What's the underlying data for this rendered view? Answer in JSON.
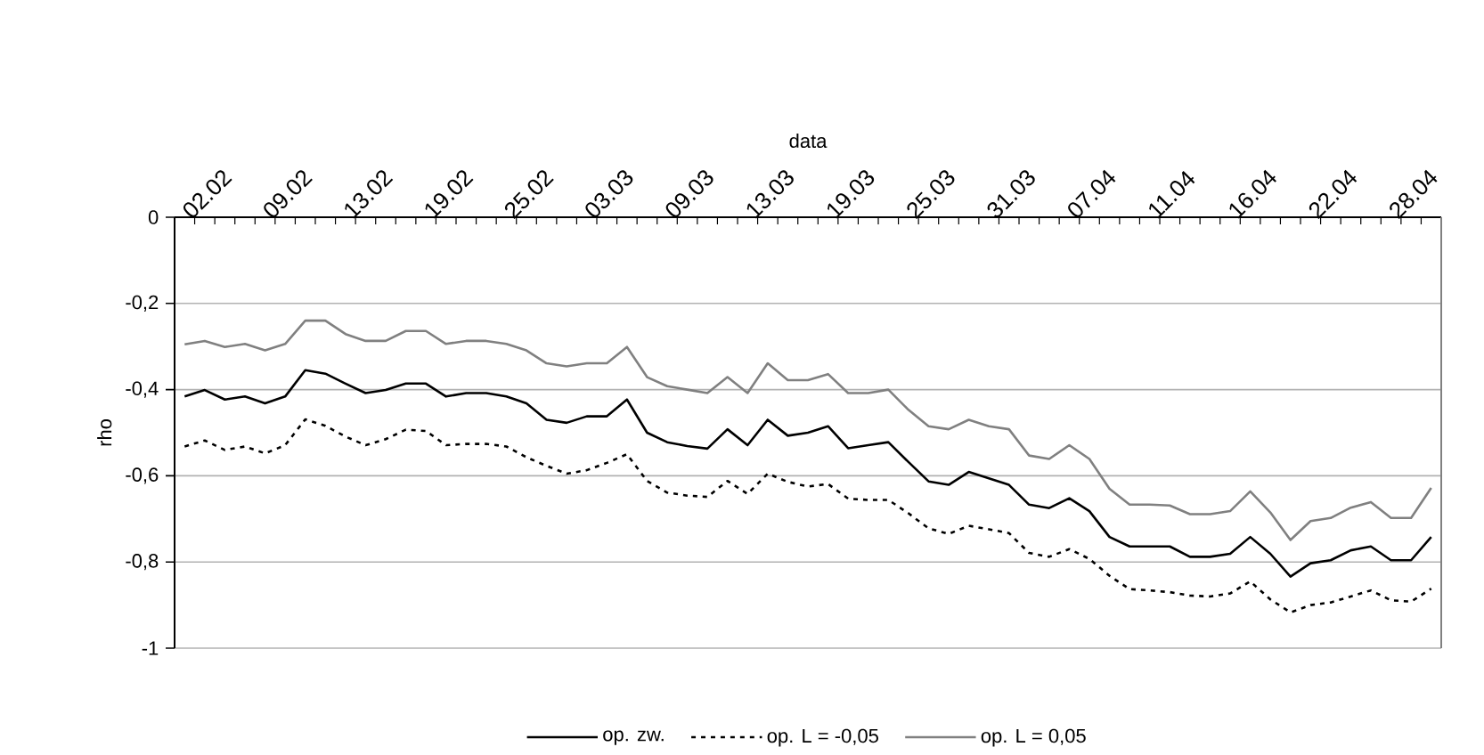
{
  "chart_data": {
    "type": "line",
    "xlabel": "data",
    "ylabel": "rho",
    "categories": [
      null,
      "02.02",
      null,
      null,
      null,
      "09.02",
      null,
      null,
      null,
      "13.02",
      null,
      null,
      null,
      "19.02",
      null,
      null,
      null,
      "25.02",
      null,
      null,
      null,
      "03.03",
      null,
      null,
      null,
      "09.03",
      null,
      null,
      null,
      "13.03",
      null,
      null,
      null,
      "19.03",
      null,
      null,
      null,
      "25.03",
      null,
      null,
      null,
      "31.03",
      null,
      null,
      null,
      "07.04",
      null,
      null,
      null,
      "11.04",
      null,
      null,
      null,
      "16.04",
      null,
      null,
      null,
      "22.04",
      null,
      null,
      null,
      "28.04",
      null
    ],
    "series": [
      {
        "name": "op. zw.",
        "color": "#000000",
        "line_style": "solid",
        "values": [
          -0.416,
          -0.401,
          -0.423,
          -0.416,
          -0.432,
          -0.416,
          -0.355,
          -0.363,
          -0.386,
          -0.408,
          -0.401,
          -0.386,
          -0.386,
          -0.416,
          -0.408,
          -0.408,
          -0.416,
          -0.432,
          -0.47,
          -0.477,
          -0.462,
          -0.462,
          -0.423,
          -0.5,
          -0.522,
          -0.531,
          -0.537,
          -0.492,
          -0.529,
          -0.47,
          -0.507,
          -0.5,
          -0.485,
          -0.536,
          -0.529,
          -0.522,
          -0.568,
          -0.613,
          -0.621,
          -0.591,
          -0.606,
          -0.621,
          -0.667,
          -0.675,
          -0.652,
          -0.682,
          -0.742,
          -0.764,
          -0.764,
          -0.764,
          -0.788,
          -0.788,
          -0.781,
          -0.742,
          -0.781,
          -0.834,
          -0.803,
          -0.796,
          -0.773,
          -0.764,
          -0.796,
          -0.796,
          -0.742
        ]
      },
      {
        "name": "op. L = -0,05",
        "color": "#000000",
        "line_style": "dotted",
        "values": [
          -0.532,
          -0.518,
          -0.54,
          -0.532,
          -0.548,
          -0.529,
          -0.469,
          -0.484,
          -0.509,
          -0.529,
          -0.515,
          -0.493,
          -0.496,
          -0.529,
          -0.526,
          -0.526,
          -0.532,
          -0.557,
          -0.577,
          -0.595,
          -0.587,
          -0.57,
          -0.55,
          -0.612,
          -0.639,
          -0.646,
          -0.649,
          -0.612,
          -0.642,
          -0.595,
          -0.614,
          -0.625,
          -0.619,
          -0.653,
          -0.656,
          -0.656,
          -0.687,
          -0.722,
          -0.735,
          -0.716,
          -0.724,
          -0.733,
          -0.779,
          -0.788,
          -0.77,
          -0.793,
          -0.832,
          -0.863,
          -0.866,
          -0.87,
          -0.878,
          -0.88,
          -0.873,
          -0.845,
          -0.887,
          -0.917,
          -0.9,
          -0.894,
          -0.88,
          -0.866,
          -0.889,
          -0.892,
          -0.862
        ]
      },
      {
        "name": "op. L = 0,05",
        "color": "#808080",
        "line_style": "solid",
        "values": [
          -0.295,
          -0.287,
          -0.301,
          -0.294,
          -0.309,
          -0.294,
          -0.24,
          -0.24,
          -0.271,
          -0.287,
          -0.287,
          -0.264,
          -0.264,
          -0.294,
          -0.287,
          -0.287,
          -0.294,
          -0.309,
          -0.339,
          -0.346,
          -0.339,
          -0.339,
          -0.301,
          -0.371,
          -0.392,
          -0.4,
          -0.408,
          -0.371,
          -0.408,
          -0.339,
          -0.378,
          -0.378,
          -0.364,
          -0.408,
          -0.408,
          -0.4,
          -0.447,
          -0.485,
          -0.492,
          -0.47,
          -0.485,
          -0.492,
          -0.553,
          -0.561,
          -0.529,
          -0.561,
          -0.63,
          -0.667,
          -0.667,
          -0.669,
          -0.689,
          -0.689,
          -0.682,
          -0.636,
          -0.685,
          -0.749,
          -0.705,
          -0.698,
          -0.674,
          -0.661,
          -0.698,
          -0.698,
          -0.628
        ]
      }
    ],
    "ylim": [
      -1,
      0
    ],
    "yticks": [
      0,
      {
        "value": -0.2,
        "label": "-0,2"
      },
      {
        "value": -0.4,
        "label": "-0,4"
      },
      {
        "value": -0.6,
        "label": "-0,6"
      },
      {
        "value": -0.8,
        "label": "-0,8"
      },
      -1
    ],
    "grid": "y",
    "legend": "bottom",
    "marker": "none"
  }
}
